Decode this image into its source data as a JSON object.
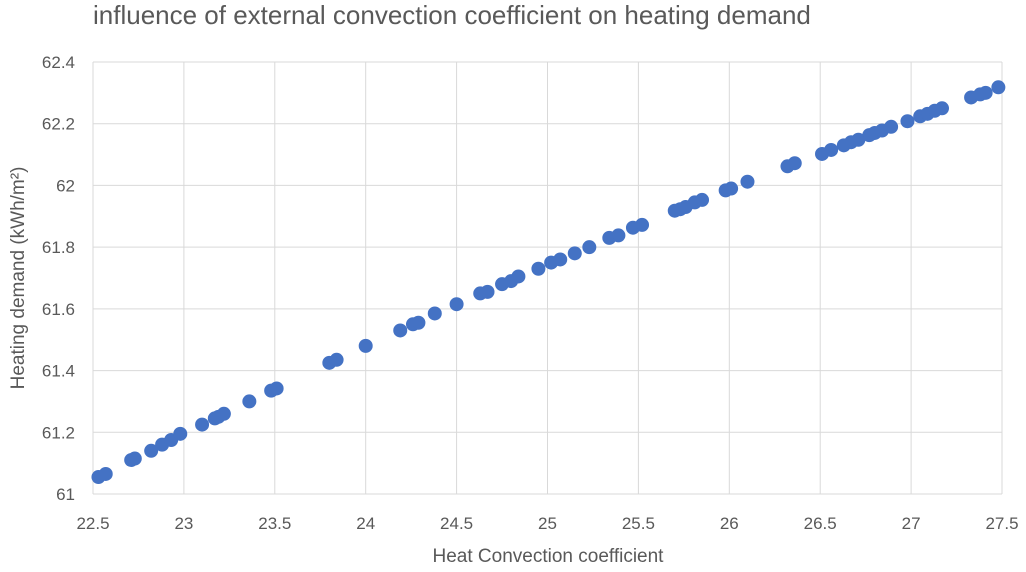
{
  "chart_data": {
    "type": "scatter",
    "title": "influence of external convection coefficient on heating demand",
    "xlabel": "Heat Convection coefficient",
    "ylabel": "Heating demand (kWh/m²)",
    "xlim": [
      22.5,
      27.5
    ],
    "ylim": [
      61,
      62.4
    ],
    "x_ticks": [
      "22.5",
      "23",
      "23.5",
      "24",
      "24.5",
      "25",
      "25.5",
      "26",
      "26.5",
      "27",
      "27.5"
    ],
    "y_ticks": [
      "61",
      "61.2",
      "61.4",
      "61.6",
      "61.8",
      "62",
      "62.2",
      "62.4"
    ],
    "grid": true,
    "legend": "none",
    "marker_color": "#4472c4",
    "series": [
      {
        "points": [
          [
            22.53,
            61.055
          ],
          [
            22.57,
            61.065
          ],
          [
            22.71,
            61.11
          ],
          [
            22.73,
            61.115
          ],
          [
            22.82,
            61.14
          ],
          [
            22.88,
            61.16
          ],
          [
            22.93,
            61.175
          ],
          [
            22.98,
            61.195
          ],
          [
            23.1,
            61.225
          ],
          [
            23.17,
            61.245
          ],
          [
            23.19,
            61.25
          ],
          [
            23.22,
            61.26
          ],
          [
            23.36,
            61.3
          ],
          [
            23.48,
            61.335
          ],
          [
            23.51,
            61.342
          ],
          [
            23.8,
            61.425
          ],
          [
            23.84,
            61.435
          ],
          [
            24.0,
            61.48
          ],
          [
            24.19,
            61.53
          ],
          [
            24.26,
            61.55
          ],
          [
            24.29,
            61.555
          ],
          [
            24.38,
            61.585
          ],
          [
            24.5,
            61.615
          ],
          [
            24.63,
            61.65
          ],
          [
            24.67,
            61.655
          ],
          [
            24.75,
            61.68
          ],
          [
            24.8,
            61.69
          ],
          [
            24.84,
            61.705
          ],
          [
            24.95,
            61.73
          ],
          [
            25.02,
            61.75
          ],
          [
            25.07,
            61.76
          ],
          [
            25.15,
            61.78
          ],
          [
            25.23,
            61.8
          ],
          [
            25.34,
            61.83
          ],
          [
            25.39,
            61.838
          ],
          [
            25.47,
            61.863
          ],
          [
            25.52,
            61.872
          ],
          [
            25.7,
            61.918
          ],
          [
            25.73,
            61.923
          ],
          [
            25.76,
            61.93
          ],
          [
            25.81,
            61.945
          ],
          [
            25.85,
            61.953
          ],
          [
            25.98,
            61.984
          ],
          [
            26.01,
            61.99
          ],
          [
            26.1,
            62.012
          ],
          [
            26.32,
            62.062
          ],
          [
            26.36,
            62.072
          ],
          [
            26.51,
            62.102
          ],
          [
            26.56,
            62.115
          ],
          [
            26.63,
            62.13
          ],
          [
            26.67,
            62.14
          ],
          [
            26.71,
            62.148
          ],
          [
            26.77,
            62.163
          ],
          [
            26.8,
            62.17
          ],
          [
            26.84,
            62.178
          ],
          [
            26.89,
            62.19
          ],
          [
            26.98,
            62.208
          ],
          [
            27.05,
            62.224
          ],
          [
            27.09,
            62.232
          ],
          [
            27.13,
            62.242
          ],
          [
            27.17,
            62.25
          ],
          [
            27.33,
            62.285
          ],
          [
            27.38,
            62.295
          ],
          [
            27.41,
            62.3
          ],
          [
            27.48,
            62.318
          ]
        ]
      }
    ]
  }
}
